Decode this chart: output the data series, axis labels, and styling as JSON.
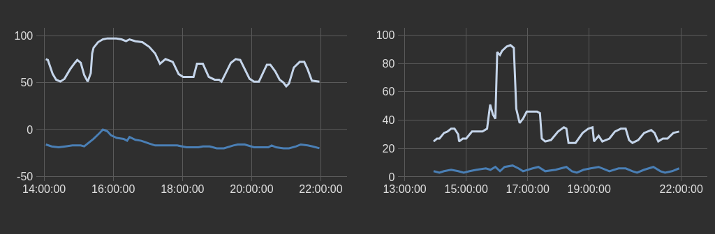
{
  "chart_data": [
    {
      "type": "line",
      "xlim": [
        13.78,
        22.75
      ],
      "ylim": [
        -55,
        108
      ],
      "xticks": [
        {
          "value": 14,
          "label": "14:00:00"
        },
        {
          "value": 16,
          "label": "16:00:00"
        },
        {
          "value": 18,
          "label": "18:00:00"
        },
        {
          "value": 20,
          "label": "20:00:00"
        },
        {
          "value": 22,
          "label": "22:00:00"
        }
      ],
      "yticks": [
        -50,
        0,
        50,
        100
      ],
      "grid": true,
      "marker": "none",
      "line_style": "solid",
      "series": [
        {
          "color": "#c5d5ea",
          "x": [
            14.05,
            14.11,
            14.25,
            14.35,
            14.47,
            14.59,
            14.75,
            14.89,
            14.96,
            15.06,
            15.16,
            15.26,
            15.35,
            15.39,
            15.43,
            15.56,
            15.7,
            15.83,
            16.09,
            16.24,
            16.37,
            16.47,
            16.64,
            16.84,
            17.04,
            17.21,
            17.35,
            17.51,
            17.72,
            17.89,
            18.02,
            18.32,
            18.42,
            18.59,
            18.76,
            18.93,
            19.06,
            19.13,
            19.4,
            19.54,
            19.67,
            19.94,
            20.07,
            20.21,
            20.44,
            20.54,
            20.68,
            20.81,
            20.92,
            21.0,
            21.08,
            21.22,
            21.39,
            21.52,
            21.62,
            21.74,
            21.96
          ],
          "values": [
            75,
            74,
            59,
            53,
            51,
            54,
            64,
            71,
            74,
            71,
            58,
            51,
            60,
            81,
            87,
            93,
            96,
            97,
            97,
            96,
            94,
            96,
            94,
            93,
            88,
            81,
            70,
            75,
            72,
            59,
            56,
            56,
            70,
            70,
            56,
            53,
            53,
            51,
            71,
            75,
            74,
            54,
            51,
            51,
            69,
            69,
            62,
            53,
            50,
            46,
            49,
            66,
            72,
            72,
            64,
            52,
            51
          ]
        },
        {
          "color": "#4a7fb5",
          "x": [
            14.05,
            14.22,
            14.42,
            14.62,
            14.82,
            15.06,
            15.16,
            15.43,
            15.6,
            15.7,
            15.83,
            15.93,
            16.1,
            16.3,
            16.4,
            16.47,
            16.64,
            16.81,
            17.04,
            17.21,
            17.45,
            17.85,
            18.12,
            18.46,
            18.59,
            18.79,
            18.99,
            19.2,
            19.47,
            19.6,
            19.8,
            20.07,
            20.48,
            20.58,
            20.71,
            20.92,
            21.08,
            21.29,
            21.42,
            21.62,
            21.76,
            21.96
          ],
          "values": [
            -16,
            -18,
            -19,
            -18,
            -17,
            -17,
            -18,
            -10,
            -4,
            0,
            -2,
            -6,
            -9,
            -10,
            -12,
            -8,
            -11,
            -12,
            -15,
            -17,
            -17,
            -17,
            -19,
            -19,
            -18,
            -18,
            -20,
            -20,
            -17,
            -16,
            -16,
            -19,
            -19,
            -17,
            -19,
            -20,
            -20,
            -18,
            -16,
            -17,
            -18,
            -20
          ]
        }
      ]
    },
    {
      "type": "line",
      "xlim": [
        12.79,
        22.84
      ],
      "ylim": [
        -3,
        105
      ],
      "xticks": [
        {
          "value": 13,
          "label": "13:00:00"
        },
        {
          "value": 15,
          "label": "15:00:00"
        },
        {
          "value": 17,
          "label": "17:00:00"
        },
        {
          "value": 19,
          "label": "19:00:00"
        },
        {
          "value": 22,
          "label": "22:00:00"
        }
      ],
      "yticks": [
        0,
        20,
        40,
        60,
        80,
        100
      ],
      "grid": true,
      "marker": "none",
      "line_style": "solid",
      "series": [
        {
          "color": "#c5d5ea",
          "x": [
            13.94,
            14.05,
            14.13,
            14.28,
            14.39,
            14.51,
            14.62,
            14.74,
            14.77,
            14.89,
            15.0,
            15.19,
            15.42,
            15.53,
            15.68,
            15.78,
            15.87,
            15.95,
            16.01,
            16.1,
            16.17,
            16.32,
            16.44,
            16.55,
            16.63,
            16.74,
            16.85,
            16.97,
            17.31,
            17.4,
            17.46,
            17.57,
            17.76,
            17.99,
            18.18,
            18.26,
            18.33,
            18.56,
            18.79,
            18.97,
            19.11,
            19.16,
            19.31,
            19.43,
            19.66,
            19.84,
            20.03,
            20.19,
            20.3,
            20.41,
            20.6,
            20.79,
            21.02,
            21.13,
            21.25,
            21.4,
            21.55,
            21.74,
            21.93
          ],
          "values": [
            25,
            27,
            27,
            31,
            32,
            34,
            34,
            30,
            25,
            27,
            27,
            32,
            32,
            32,
            34,
            51,
            44,
            41,
            88,
            86,
            89,
            92,
            93,
            91,
            48,
            38,
            41,
            46,
            46,
            45,
            27,
            25,
            26,
            32,
            35,
            34,
            24,
            24,
            31,
            34,
            35,
            25,
            29,
            25,
            27,
            32,
            34,
            34,
            26,
            24,
            26,
            31,
            33,
            31,
            25,
            27,
            27,
            31,
            32
          ]
        },
        {
          "color": "#4a7fb5",
          "x": [
            13.94,
            14.13,
            14.28,
            14.51,
            14.74,
            14.92,
            15.11,
            15.34,
            15.64,
            15.79,
            15.95,
            16.1,
            16.25,
            16.51,
            16.7,
            16.85,
            17.16,
            17.35,
            17.57,
            17.91,
            18.26,
            18.44,
            18.6,
            18.82,
            19.05,
            19.31,
            19.66,
            19.96,
            20.19,
            20.41,
            20.56,
            20.79,
            21.09,
            21.32,
            21.47,
            21.7,
            21.93
          ],
          "values": [
            4,
            3,
            4,
            5,
            4,
            3,
            4,
            5,
            6,
            5,
            7,
            4,
            7,
            8,
            6,
            4,
            6,
            7,
            4,
            5,
            7,
            4,
            3,
            5,
            6,
            7,
            4,
            6,
            6,
            4,
            3,
            5,
            7,
            4,
            3,
            4,
            6
          ]
        }
      ]
    }
  ]
}
